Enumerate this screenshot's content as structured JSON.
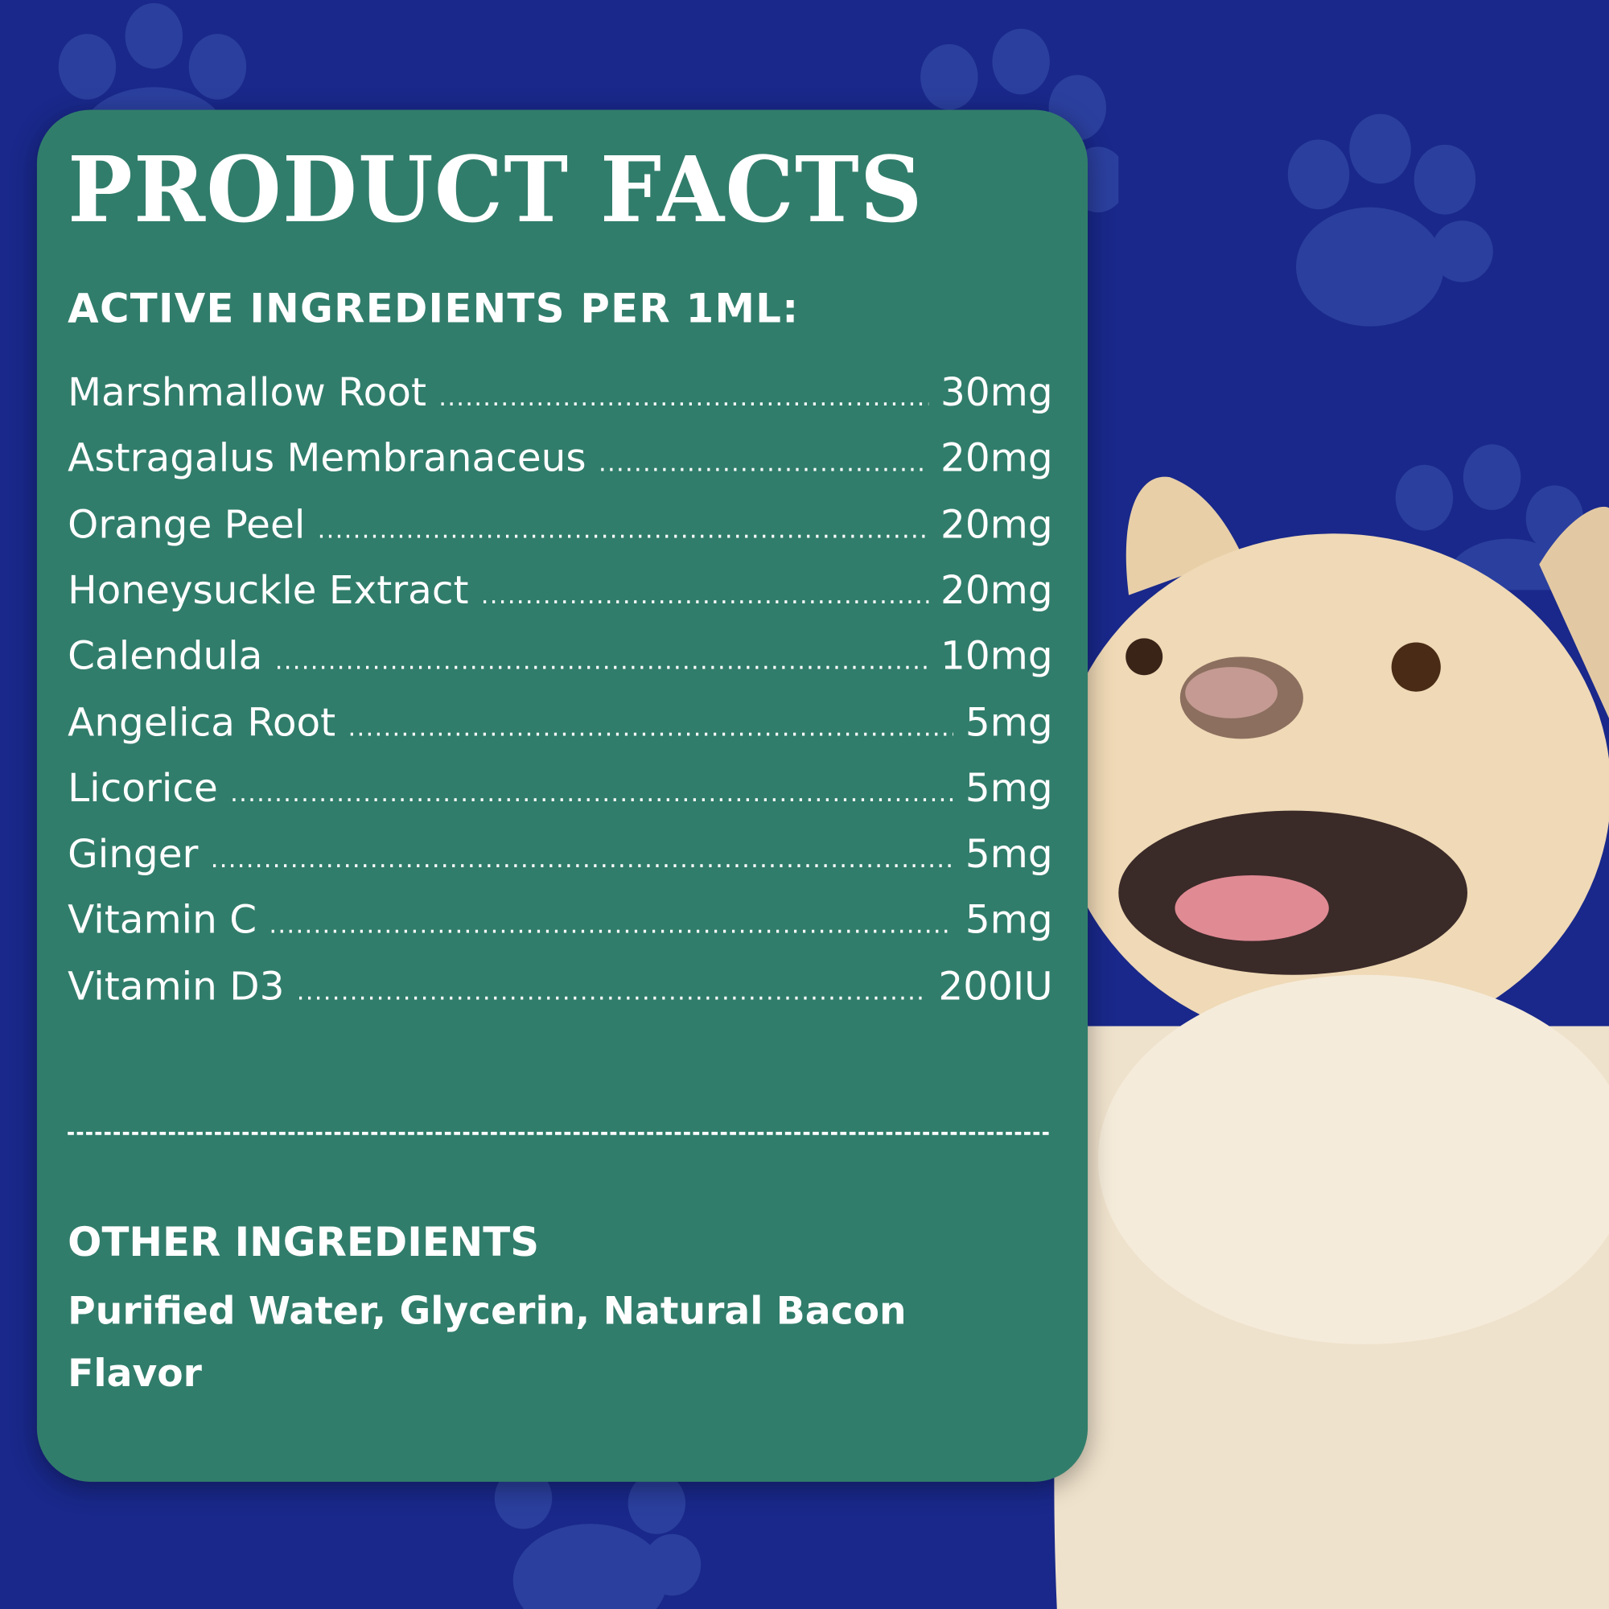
{
  "colors": {
    "background": "#19288a",
    "card": "#317d6b",
    "text": "#ffffff",
    "paw": "#2b3f9e",
    "dog_fur": "#f1e2c8"
  },
  "icons": [
    "paw-print-icon"
  ],
  "title": "PRODUCT FACTS",
  "subtitle": "ACTIVE INGREDIENTS PER 1ML:",
  "ingredients": [
    {
      "name": "Marshmallow Root",
      "amount": "30mg"
    },
    {
      "name": "Astragalus Membranaceus",
      "amount": "20mg"
    },
    {
      "name": "Orange Peel",
      "amount": "20mg"
    },
    {
      "name": "Honeysuckle Extract",
      "amount": "20mg"
    },
    {
      "name": "Calendula",
      "amount": "10mg"
    },
    {
      "name": "Angelica Root",
      "amount": "5mg"
    },
    {
      "name": "Licorice",
      "amount": "5mg"
    },
    {
      "name": "Ginger",
      "amount": "5mg"
    },
    {
      "name": "Vitamin C",
      "amount": "5mg"
    },
    {
      "name": "Vitamin D3",
      "amount": "200IU"
    }
  ],
  "other": {
    "heading": "OTHER INGREDIENTS",
    "text": "Purified Water, Glycerin, Natural Bacon Flavor"
  }
}
